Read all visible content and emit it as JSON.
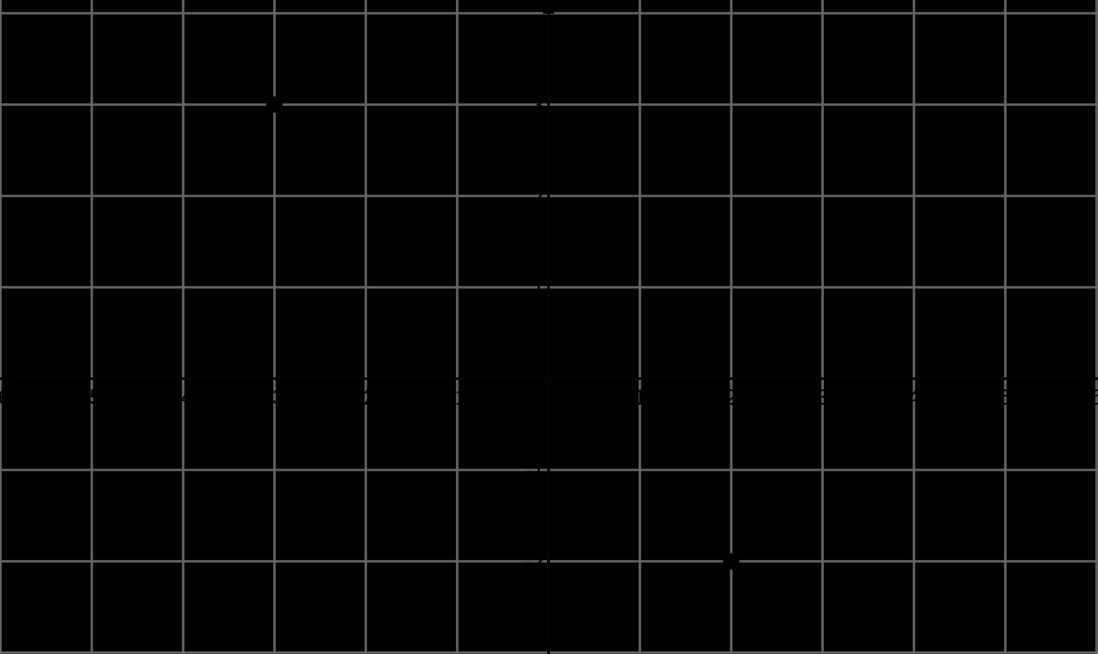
{
  "chart_data": {
    "type": "scatter",
    "title": "",
    "points": [
      {
        "x": -3,
        "y": 3
      },
      {
        "x": 2,
        "y": -2
      }
    ],
    "x_axis": {
      "min": -6,
      "max": 6,
      "tick_values": [
        -6,
        -5,
        -4,
        -3,
        -2,
        -1,
        1,
        2,
        3,
        4,
        5,
        6
      ],
      "tick_labels": [
        "-6",
        "-5",
        "-4",
        "-3",
        "-2",
        "-1",
        "1",
        "2",
        "3",
        "4",
        "5",
        "6"
      ]
    },
    "y_axis": {
      "min": -3,
      "max": 4,
      "tick_values": [
        3,
        2,
        1,
        -1,
        -2
      ],
      "tick_labels": [
        "3",
        "2",
        "1",
        "-1",
        "-2"
      ]
    },
    "grid": true,
    "legend": false,
    "colors": {
      "background": "#000000",
      "grid_line": "#646669",
      "axis": "#000000",
      "tick_label": "#000000",
      "point": "#000000"
    }
  }
}
